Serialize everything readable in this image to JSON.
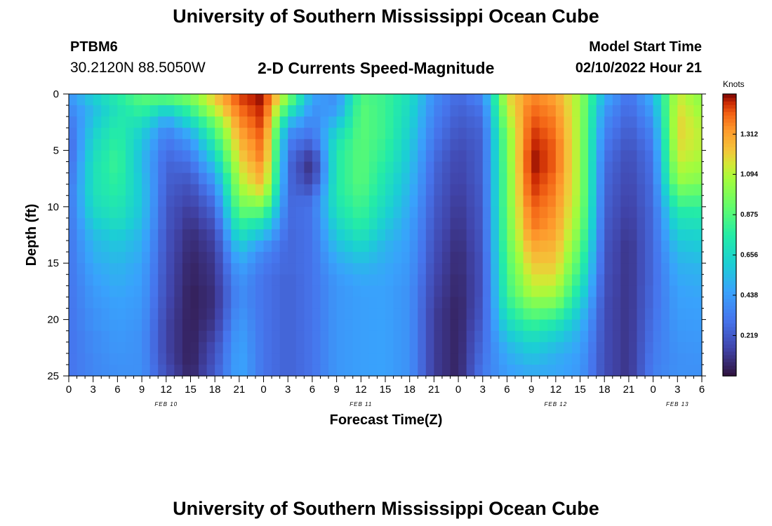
{
  "header": {
    "title": "University of Southern Mississippi Ocean Cube",
    "station_id": "PTBM6",
    "coordinates": "30.2120N  88.5050W",
    "subtitle": "2-D Currents Speed-Magnitude",
    "model_start_label": "Model Start Time",
    "model_start_value": "02/10/2022 Hour 21"
  },
  "footer": {
    "title": "University of Southern Mississippi Ocean Cube"
  },
  "chart_data": {
    "type": "heatmap",
    "title": "2-D Currents Speed-Magnitude",
    "xlabel": "Forecast Time(Z)",
    "ylabel": "Depth (ft)",
    "xlim": [
      0,
      78
    ],
    "ylim": [
      25,
      0
    ],
    "x_ticks": [
      0,
      3,
      6,
      9,
      12,
      15,
      18,
      21,
      24,
      27,
      30,
      33,
      36,
      39,
      42,
      45,
      48,
      51,
      54,
      57,
      60,
      63,
      66,
      69,
      72,
      75,
      78
    ],
    "x_tick_labels": [
      "0",
      "3",
      "6",
      "9",
      "12",
      "15",
      "18",
      "21",
      "0",
      "3",
      "6",
      "9",
      "12",
      "15",
      "18",
      "21",
      "0",
      "3",
      "6",
      "9",
      "12",
      "15",
      "18",
      "21",
      "0",
      "3",
      "6"
    ],
    "y_ticks": [
      0,
      5,
      10,
      15,
      20,
      25
    ],
    "y_tick_labels": [
      "0",
      "5",
      "10",
      "15",
      "20",
      "25"
    ],
    "date_labels": [
      {
        "label": "FEB 10",
        "hour": 12
      },
      {
        "label": "FEB 11",
        "hour": 36
      },
      {
        "label": "FEB 12",
        "hour": 60
      },
      {
        "label": "FEB 13",
        "hour": 75
      }
    ],
    "colorbar": {
      "unit": "Knots",
      "min": 0,
      "max": 1.53,
      "tick_values": [
        0.219,
        0.438,
        0.656,
        0.875,
        1.094,
        1.312
      ],
      "tick_labels": [
        "0.219",
        "0.438",
        "0.656",
        "0.875",
        "1.094",
        "1.312"
      ]
    },
    "grid": {
      "x_step_hours": 1,
      "depth_step_ft": 1,
      "depths_ft": [
        0,
        1,
        2,
        3,
        4,
        5,
        6,
        7,
        8,
        9,
        10,
        11,
        12,
        13,
        14,
        15,
        16,
        17,
        18,
        19,
        20,
        21,
        22,
        23,
        24,
        25
      ],
      "profiles": [
        {
          "hour": 0,
          "values": [
            0.45,
            0.4,
            0.35,
            0.3,
            0.27,
            0.25,
            0.25,
            0.27,
            0.28,
            0.3,
            0.3,
            0.3,
            0.3,
            0.3,
            0.3,
            0.3,
            0.3,
            0.3,
            0.3,
            0.3,
            0.3,
            0.3,
            0.3,
            0.3,
            0.3,
            0.3
          ]
        },
        {
          "hour": 3,
          "values": [
            0.7,
            0.6,
            0.55,
            0.58,
            0.62,
            0.65,
            0.68,
            0.7,
            0.7,
            0.7,
            0.68,
            0.65,
            0.6,
            0.55,
            0.52,
            0.5,
            0.47,
            0.45,
            0.43,
            0.42,
            0.4,
            0.4,
            0.38,
            0.38,
            0.37,
            0.37
          ]
        },
        {
          "hour": 6,
          "values": [
            0.85,
            0.75,
            0.72,
            0.75,
            0.78,
            0.8,
            0.82,
            0.82,
            0.8,
            0.78,
            0.75,
            0.72,
            0.68,
            0.62,
            0.58,
            0.55,
            0.52,
            0.5,
            0.48,
            0.46,
            0.45,
            0.44,
            0.43,
            0.42,
            0.41,
            0.4
          ]
        },
        {
          "hour": 9,
          "values": [
            0.95,
            0.88,
            0.8,
            0.7,
            0.62,
            0.58,
            0.55,
            0.55,
            0.57,
            0.58,
            0.58,
            0.57,
            0.55,
            0.52,
            0.5,
            0.48,
            0.46,
            0.45,
            0.44,
            0.43,
            0.42,
            0.41,
            0.4,
            0.4,
            0.4,
            0.4
          ]
        },
        {
          "hour": 12,
          "values": [
            1.0,
            0.85,
            0.62,
            0.45,
            0.35,
            0.3,
            0.27,
            0.25,
            0.24,
            0.23,
            0.22,
            0.21,
            0.21,
            0.2,
            0.2,
            0.19,
            0.19,
            0.18,
            0.18,
            0.17,
            0.16,
            0.15,
            0.15,
            0.15,
            0.16,
            0.18
          ]
        },
        {
          "hour": 15,
          "values": [
            1.05,
            0.95,
            0.8,
            0.65,
            0.5,
            0.4,
            0.33,
            0.27,
            0.22,
            0.18,
            0.15,
            0.12,
            0.1,
            0.08,
            0.07,
            0.06,
            0.05,
            0.05,
            0.04,
            0.04,
            0.04,
            0.04,
            0.04,
            0.04,
            0.04,
            0.05
          ]
        },
        {
          "hour": 18,
          "values": [
            1.25,
            1.2,
            1.1,
            0.95,
            0.85,
            0.75,
            0.65,
            0.55,
            0.45,
            0.37,
            0.3,
            0.25,
            0.2,
            0.16,
            0.14,
            0.12,
            0.11,
            0.1,
            0.09,
            0.09,
            0.1,
            0.12,
            0.15,
            0.18,
            0.2,
            0.22
          ]
        },
        {
          "hour": 21,
          "values": [
            1.5,
            1.45,
            1.4,
            1.35,
            1.3,
            1.25,
            1.2,
            1.15,
            1.1,
            1.05,
            0.98,
            0.9,
            0.8,
            0.7,
            0.6,
            0.52,
            0.46,
            0.42,
            0.4,
            0.4,
            0.42,
            0.44,
            0.46,
            0.47,
            0.48,
            0.48
          ]
        },
        {
          "hour": 24,
          "values": [
            1.55,
            1.52,
            1.5,
            1.48,
            1.45,
            1.42,
            1.4,
            1.35,
            1.3,
            1.2,
            1.05,
            0.88,
            0.7,
            0.55,
            0.42,
            0.35,
            0.32,
            0.3,
            0.3,
            0.3,
            0.3,
            0.3,
            0.3,
            0.3,
            0.3,
            0.3
          ]
        },
        {
          "hour": 27,
          "values": [
            1.1,
            0.95,
            0.75,
            0.55,
            0.4,
            0.33,
            0.3,
            0.28,
            0.28,
            0.27,
            0.27,
            0.27,
            0.27,
            0.26,
            0.26,
            0.26,
            0.26,
            0.25,
            0.25,
            0.25,
            0.25,
            0.25,
            0.25,
            0.25,
            0.25,
            0.25
          ]
        },
        {
          "hour": 30,
          "values": [
            0.5,
            0.45,
            0.4,
            0.35,
            0.3,
            0.22,
            0.12,
            0.08,
            0.12,
            0.2,
            0.28,
            0.3,
            0.3,
            0.3,
            0.3,
            0.3,
            0.3,
            0.3,
            0.3,
            0.3,
            0.3,
            0.3,
            0.3,
            0.3,
            0.3,
            0.3
          ]
        },
        {
          "hour": 33,
          "values": [
            0.35,
            0.4,
            0.45,
            0.55,
            0.65,
            0.72,
            0.75,
            0.75,
            0.75,
            0.75,
            0.73,
            0.7,
            0.65,
            0.6,
            0.55,
            0.5,
            0.46,
            0.43,
            0.42,
            0.42,
            0.42,
            0.42,
            0.42,
            0.42,
            0.42,
            0.42
          ]
        },
        {
          "hour": 36,
          "values": [
            0.85,
            0.88,
            0.9,
            0.9,
            0.9,
            0.9,
            0.9,
            0.9,
            0.9,
            0.88,
            0.85,
            0.82,
            0.78,
            0.72,
            0.65,
            0.58,
            0.52,
            0.48,
            0.46,
            0.45,
            0.45,
            0.45,
            0.45,
            0.45,
            0.45,
            0.45
          ]
        },
        {
          "hour": 39,
          "values": [
            0.8,
            0.82,
            0.82,
            0.82,
            0.82,
            0.8,
            0.78,
            0.75,
            0.72,
            0.7,
            0.67,
            0.64,
            0.6,
            0.56,
            0.52,
            0.5,
            0.48,
            0.47,
            0.46,
            0.46,
            0.46,
            0.46,
            0.46,
            0.46,
            0.46,
            0.46
          ]
        },
        {
          "hour": 42,
          "values": [
            0.7,
            0.68,
            0.66,
            0.64,
            0.62,
            0.6,
            0.58,
            0.56,
            0.54,
            0.52,
            0.5,
            0.48,
            0.46,
            0.45,
            0.44,
            0.43,
            0.42,
            0.41,
            0.4,
            0.4,
            0.4,
            0.4,
            0.4,
            0.4,
            0.4,
            0.4
          ]
        },
        {
          "hour": 45,
          "values": [
            0.4,
            0.38,
            0.36,
            0.34,
            0.32,
            0.3,
            0.28,
            0.26,
            0.25,
            0.24,
            0.23,
            0.22,
            0.21,
            0.2,
            0.19,
            0.18,
            0.17,
            0.16,
            0.15,
            0.14,
            0.13,
            0.13,
            0.13,
            0.13,
            0.13,
            0.13
          ]
        },
        {
          "hour": 48,
          "values": [
            0.28,
            0.26,
            0.24,
            0.22,
            0.2,
            0.18,
            0.16,
            0.15,
            0.14,
            0.13,
            0.12,
            0.11,
            0.1,
            0.09,
            0.08,
            0.07,
            0.07,
            0.06,
            0.06,
            0.05,
            0.05,
            0.05,
            0.05,
            0.05,
            0.05,
            0.05
          ]
        },
        {
          "hour": 51,
          "values": [
            0.45,
            0.35,
            0.3,
            0.27,
            0.25,
            0.24,
            0.24,
            0.24,
            0.24,
            0.23,
            0.23,
            0.22,
            0.22,
            0.21,
            0.21,
            0.2,
            0.2,
            0.2,
            0.2,
            0.21,
            0.22,
            0.24,
            0.26,
            0.28,
            0.3,
            0.32
          ]
        },
        {
          "hour": 54,
          "values": [
            1.2,
            1.15,
            1.1,
            1.05,
            1.0,
            0.98,
            0.97,
            0.96,
            0.95,
            0.95,
            0.95,
            0.94,
            0.93,
            0.92,
            0.9,
            0.88,
            0.86,
            0.84,
            0.82,
            0.78,
            0.72,
            0.65,
            0.58,
            0.52,
            0.48,
            0.45
          ]
        },
        {
          "hour": 57,
          "values": [
            1.35,
            1.38,
            1.42,
            1.45,
            1.48,
            1.5,
            1.52,
            1.52,
            1.5,
            1.48,
            1.45,
            1.42,
            1.4,
            1.35,
            1.3,
            1.25,
            1.2,
            1.15,
            1.1,
            1.0,
            0.9,
            0.8,
            0.7,
            0.62,
            0.56,
            0.5
          ]
        },
        {
          "hour": 60,
          "values": [
            1.3,
            1.32,
            1.35,
            1.38,
            1.4,
            1.42,
            1.42,
            1.42,
            1.4,
            1.38,
            1.36,
            1.34,
            1.32,
            1.3,
            1.27,
            1.24,
            1.2,
            1.15,
            1.08,
            0.98,
            0.85,
            0.72,
            0.62,
            0.55,
            0.5,
            0.48
          ]
        },
        {
          "hour": 63,
          "values": [
            1.05,
            1.05,
            1.05,
            1.05,
            1.05,
            1.05,
            1.05,
            1.05,
            1.05,
            1.05,
            1.04,
            1.02,
            1.0,
            0.96,
            0.92,
            0.87,
            0.82,
            0.76,
            0.7,
            0.64,
            0.58,
            0.53,
            0.49,
            0.46,
            0.44,
            0.43
          ]
        },
        {
          "hour": 66,
          "values": [
            0.55,
            0.48,
            0.42,
            0.38,
            0.35,
            0.32,
            0.3,
            0.28,
            0.27,
            0.26,
            0.25,
            0.24,
            0.23,
            0.22,
            0.21,
            0.2,
            0.2,
            0.19,
            0.19,
            0.18,
            0.18,
            0.18,
            0.18,
            0.18,
            0.18,
            0.18
          ]
        },
        {
          "hour": 69,
          "values": [
            0.3,
            0.28,
            0.26,
            0.24,
            0.22,
            0.2,
            0.18,
            0.17,
            0.16,
            0.15,
            0.14,
            0.13,
            0.12,
            0.11,
            0.1,
            0.1,
            0.1,
            0.1,
            0.1,
            0.1,
            0.1,
            0.1,
            0.1,
            0.1,
            0.1,
            0.1
          ]
        },
        {
          "hour": 72,
          "values": [
            0.55,
            0.5,
            0.45,
            0.4,
            0.36,
            0.33,
            0.31,
            0.3,
            0.29,
            0.28,
            0.28,
            0.27,
            0.27,
            0.27,
            0.27,
            0.27,
            0.27,
            0.27,
            0.28,
            0.28,
            0.29,
            0.3,
            0.31,
            0.32,
            0.33,
            0.34
          ]
        },
        {
          "hour": 75,
          "values": [
            1.1,
            1.15,
            1.18,
            1.2,
            1.2,
            1.18,
            1.15,
            1.1,
            1.05,
            0.95,
            0.85,
            0.75,
            0.68,
            0.62,
            0.57,
            0.53,
            0.5,
            0.48,
            0.46,
            0.45,
            0.44,
            0.43,
            0.42,
            0.41,
            0.4,
            0.4
          ]
        },
        {
          "hour": 78,
          "values": [
            1.0,
            1.02,
            1.05,
            1.08,
            1.1,
            1.1,
            1.08,
            1.05,
            1.0,
            0.92,
            0.84,
            0.76,
            0.7,
            0.64,
            0.6,
            0.56,
            0.52,
            0.5,
            0.48,
            0.46,
            0.45,
            0.44,
            0.43,
            0.42,
            0.41,
            0.4
          ]
        }
      ]
    }
  }
}
